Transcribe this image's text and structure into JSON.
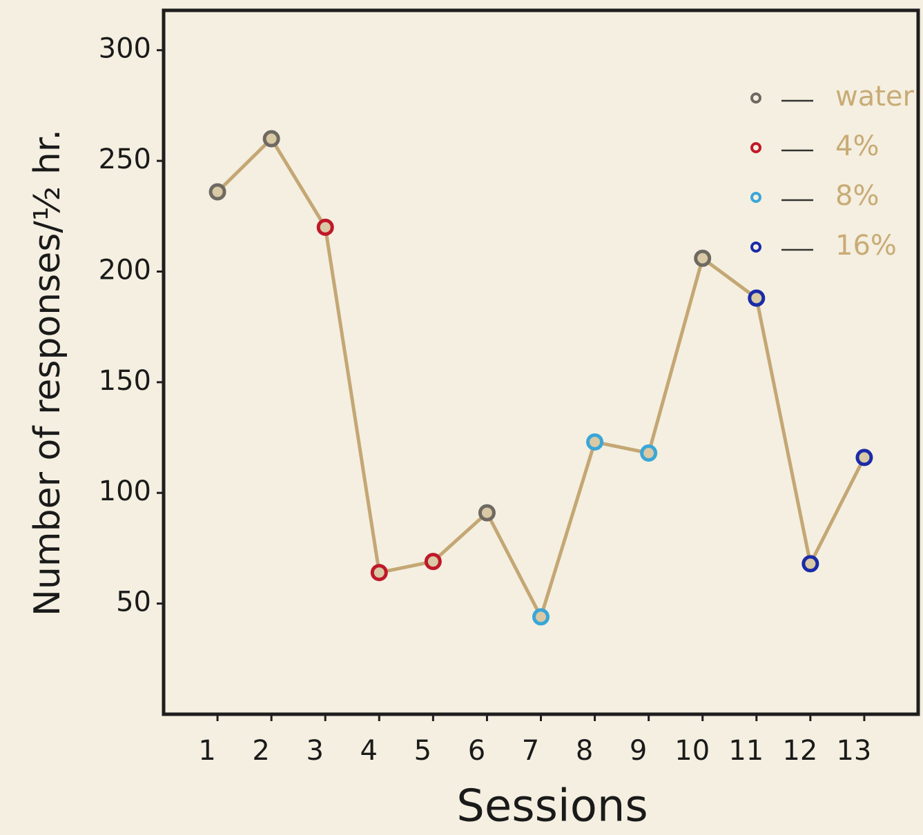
{
  "chart_data": {
    "type": "line",
    "x_label": "Sessions",
    "y_label": "Number of responses/½ hr.",
    "x": [
      1,
      2,
      3,
      4,
      5,
      6,
      7,
      8,
      9,
      10,
      11,
      12,
      13
    ],
    "line_color": "#c4a774",
    "series": [
      {
        "name": "water",
        "color": "#6e6a62",
        "values": [
          236,
          260,
          null,
          null,
          null,
          91,
          null,
          null,
          null,
          206,
          null,
          null,
          null
        ]
      },
      {
        "name": "4%",
        "color": "#c0182a",
        "values": [
          null,
          null,
          220,
          64,
          69,
          null,
          null,
          null,
          null,
          null,
          null,
          null,
          null
        ]
      },
      {
        "name": "8%",
        "color": "#3aa6d8",
        "values": [
          null,
          null,
          null,
          null,
          null,
          null,
          44,
          123,
          118,
          null,
          null,
          null,
          null
        ]
      },
      {
        "name": "16%",
        "color": "#1a2aa8",
        "values": [
          null,
          null,
          null,
          null,
          null,
          null,
          null,
          null,
          null,
          null,
          188,
          68,
          116
        ]
      }
    ],
    "xlim": [
      0,
      14
    ],
    "xticks": [
      1,
      2,
      3,
      4,
      5,
      6,
      7,
      8,
      9,
      10,
      11,
      12,
      13
    ],
    "ylim": [
      0,
      318
    ],
    "yticks": [
      50,
      100,
      150,
      200,
      250,
      300
    ],
    "grid": false,
    "legend": "upper right"
  }
}
